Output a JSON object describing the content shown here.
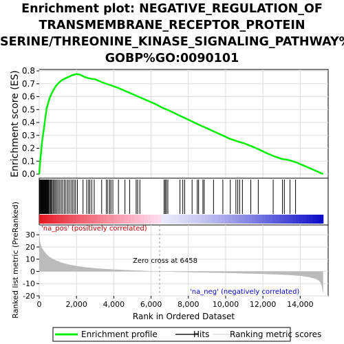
{
  "title_lines": [
    "Enrichment plot: NEGATIVE_REGULATION_OF",
    "TRANSMEMBRANE_RECEPTOR_PROTEIN",
    "SERINE/THREONINE_KINASE_SIGNALING_PATHWAY%",
    "GOBP%GO:0090101"
  ],
  "chart_data": {
    "type": "line",
    "title": "Enrichment plot: NEGATIVE_REGULATION_OF TRANSMEMBRANE_RECEPTOR_PROTEIN SERINE/THREONINE_KINASE_SIGNALING_PATHWAY% GOBP%GO:0090101",
    "xlabel": "Rank in Ordered Dataset",
    "ylabel_top": "Enrichment score (ES)",
    "ylabel_bottom": "Ranked list metric (PreRanked)",
    "xlim": [
      0,
      15500
    ],
    "x_ticks": [
      "0",
      "2,000",
      "4,000",
      "6,000",
      "8,000",
      "10,000",
      "12,000",
      "14,000"
    ],
    "x_tick_values": [
      0,
      2000,
      4000,
      6000,
      8000,
      10000,
      12000,
      14000
    ],
    "es_ylim": [
      0,
      0.8
    ],
    "es_ticks": [
      "0.0",
      "0.1",
      "0.2",
      "0.3",
      "0.4",
      "0.5",
      "0.6",
      "0.7",
      "0.8"
    ],
    "es_tick_values": [
      0,
      0.1,
      0.2,
      0.3,
      0.4,
      0.5,
      0.6,
      0.7,
      0.8
    ],
    "metric_ylim": [
      -20,
      38
    ],
    "metric_ticks": [
      "-20",
      "-10",
      "0",
      "10",
      "20",
      "30"
    ],
    "metric_tick_values": [
      -20,
      -10,
      0,
      10,
      20,
      30
    ],
    "grid": true,
    "annotations": {
      "na_pos": "'na_pos' (positively correlated)",
      "na_neg": "'na_neg' (negatively correlated)",
      "zero_cross": "Zero cross at 6458"
    },
    "zero_cross_rank": 6458,
    "total_ranks": 15230,
    "legend": [
      {
        "label": "Enrichment profile",
        "color": "#00ee00"
      },
      {
        "label": "Hits",
        "color": "#555555"
      },
      {
        "label": "Ranking metric scores",
        "color": "#cccccc"
      }
    ],
    "legend_position": "bottom",
    "series": [
      {
        "name": "Enrichment profile",
        "color": "#00ee00",
        "x": [
          0,
          30,
          80,
          130,
          180,
          230,
          280,
          330,
          400,
          480,
          560,
          650,
          760,
          880,
          1000,
          1150,
          1300,
          1450,
          1600,
          1750,
          1900,
          2000,
          2200,
          2400,
          2600,
          2800,
          3000,
          3400,
          3800,
          4200,
          4600,
          5000,
          5400,
          5800,
          6200,
          6600,
          7000,
          7400,
          7800,
          8200,
          8600,
          9000,
          9400,
          9800,
          10200,
          10600,
          11000,
          11400,
          11800,
          12200,
          12600,
          13000,
          13400,
          13800,
          14200,
          14600,
          15000,
          15230
        ],
        "y": [
          0.0,
          0.06,
          0.14,
          0.22,
          0.28,
          0.33,
          0.38,
          0.44,
          0.51,
          0.55,
          0.59,
          0.62,
          0.65,
          0.68,
          0.7,
          0.72,
          0.735,
          0.745,
          0.755,
          0.765,
          0.772,
          0.775,
          0.77,
          0.755,
          0.745,
          0.738,
          0.735,
          0.71,
          0.69,
          0.67,
          0.645,
          0.62,
          0.595,
          0.57,
          0.545,
          0.515,
          0.49,
          0.462,
          0.435,
          0.408,
          0.38,
          0.355,
          0.328,
          0.302,
          0.275,
          0.255,
          0.238,
          0.215,
          0.19,
          0.162,
          0.138,
          0.118,
          0.108,
          0.09,
          0.065,
          0.04,
          0.015,
          0.0
        ]
      },
      {
        "name": "Ranking metric scores",
        "color": "#bbbbbb",
        "x": [
          0,
          50,
          100,
          200,
          300,
          400,
          500,
          700,
          900,
          1200,
          1600,
          2000,
          2500,
          3000,
          4000,
          5000,
          6000,
          6458,
          7000,
          8000,
          9000,
          10000,
          11000,
          12000,
          13000,
          13500,
          14000,
          14500,
          14800,
          15000,
          15100,
          15150,
          15200,
          15230
        ],
        "y": [
          31,
          24,
          21,
          18,
          16,
          14,
          12.5,
          10.5,
          9,
          7.2,
          5.6,
          4.4,
          3.4,
          2.6,
          1.6,
          0.9,
          0.3,
          0,
          -0.3,
          -0.7,
          -1.0,
          -1.3,
          -1.7,
          -2.1,
          -2.7,
          -3.1,
          -3.7,
          -4.8,
          -6.0,
          -7.5,
          -9.5,
          -12,
          -16,
          -18
        ]
      }
    ],
    "hits": [
      30,
      60,
      90,
      120,
      150,
      180,
      210,
      240,
      270,
      300,
      330,
      360,
      390,
      420,
      450,
      480,
      510,
      560,
      600,
      650,
      700,
      760,
      820,
      880,
      950,
      1020,
      1100,
      1180,
      1260,
      1350,
      1430,
      1520,
      1600,
      1700,
      1780,
      1870,
      1950,
      2050,
      2350,
      2550,
      2650,
      2720,
      2820,
      2950,
      3350,
      3600,
      3680,
      3780,
      3850,
      3950,
      4250,
      4600,
      4850,
      5200,
      5280,
      5400,
      6700,
      6760,
      6820,
      6900,
      7550,
      7700,
      7800,
      8200,
      8480,
      8550,
      8780,
      8850,
      9350,
      9850,
      10250,
      10550,
      10650,
      10750,
      10900,
      11350,
      11750,
      12550,
      13050,
      13150,
      13450,
      13750
    ]
  }
}
